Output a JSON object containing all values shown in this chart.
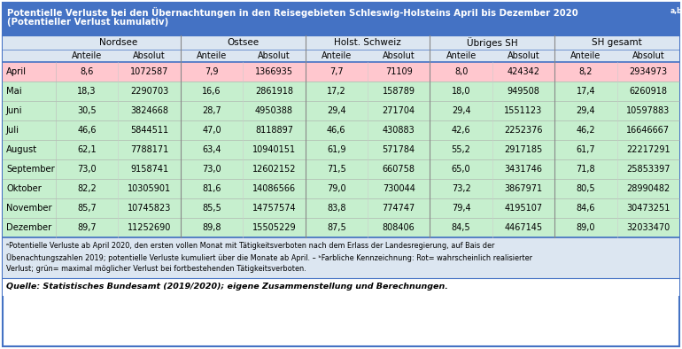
{
  "title_line1": "Potentielle Verluste bei den Übernachtungen in den Reisegebieten Schleswig-Holsteins April bis Dezember 2020",
  "title_sup": "a,b",
  "title_line2": "(Potentieller Verlust kumulativ)",
  "title_bg": "#4472c4",
  "title_fg": "#ffffff",
  "col_groups": [
    "Nordsee",
    "Ostsee",
    "Holst. Schweiz",
    "Übriges SH",
    "SH gesamt"
  ],
  "col_sub": [
    "Anteile",
    "Absolut",
    "Anteile",
    "Absolut",
    "Anteile",
    "Absolut",
    "Anteile",
    "Absolut",
    "Anteile",
    "Absolut"
  ],
  "row_labels": [
    "April",
    "Mai",
    "Juni",
    "Juli",
    "August",
    "September",
    "Oktober",
    "November",
    "Dezember"
  ],
  "row_colors": [
    "#ffc7ce",
    "#c6efce",
    "#c6efce",
    "#c6efce",
    "#c6efce",
    "#c6efce",
    "#c6efce",
    "#c6efce",
    "#c6efce"
  ],
  "data": [
    [
      "8,6",
      "1072587",
      "7,9",
      "1366935",
      "7,7",
      "71109",
      "8,0",
      "424342",
      "8,2",
      "2934973"
    ],
    [
      "18,3",
      "2290703",
      "16,6",
      "2861918",
      "17,2",
      "158789",
      "18,0",
      "949508",
      "17,4",
      "6260918"
    ],
    [
      "30,5",
      "3824668",
      "28,7",
      "4950388",
      "29,4",
      "271704",
      "29,4",
      "1551123",
      "29,4",
      "10597883"
    ],
    [
      "46,6",
      "5844511",
      "47,0",
      "8118897",
      "46,6",
      "430883",
      "42,6",
      "2252376",
      "46,2",
      "16646667"
    ],
    [
      "62,1",
      "7788171",
      "63,4",
      "10940151",
      "61,9",
      "571784",
      "55,2",
      "2917185",
      "61,7",
      "22217291"
    ],
    [
      "73,0",
      "9158741",
      "73,0",
      "12602152",
      "71,5",
      "660758",
      "65,0",
      "3431746",
      "71,8",
      "25853397"
    ],
    [
      "82,2",
      "10305901",
      "81,6",
      "14086566",
      "79,0",
      "730044",
      "73,2",
      "3867971",
      "80,5",
      "28990482"
    ],
    [
      "85,7",
      "10745823",
      "85,5",
      "14757574",
      "83,8",
      "774747",
      "79,4",
      "4195107",
      "84,6",
      "30473251"
    ],
    [
      "89,7",
      "11252690",
      "89,8",
      "15505229",
      "87,5",
      "808406",
      "84,5",
      "4467145",
      "89,0",
      "32033470"
    ]
  ],
  "fn1": "ᵃPotentielle Verluste ab April 2020, den ersten vollen Monat mit Tätigkeitsverboten nach dem Erlass der Landesregierung, auf Bais der",
  "fn2": "Übenachtungszahlen 2019; potentielle Verluste kumuliert über die Monate ab April. – ᵇFarbliche Kennzeichnung: Rot= wahrscheinlich realisierter",
  "fn3": "Verlust; grün= maximal möglicher Verlust bei fortbestehenden Tätigkeitsverboten.",
  "source": "Quelle: Statistisches Bundesamt (2019/2020); eigene Zusammenstellung und Berechnungen.",
  "header_bg": "#dce6f1",
  "border_color": "#4472c4",
  "fn_bg": "#dce6f1",
  "text_color": "#000000"
}
